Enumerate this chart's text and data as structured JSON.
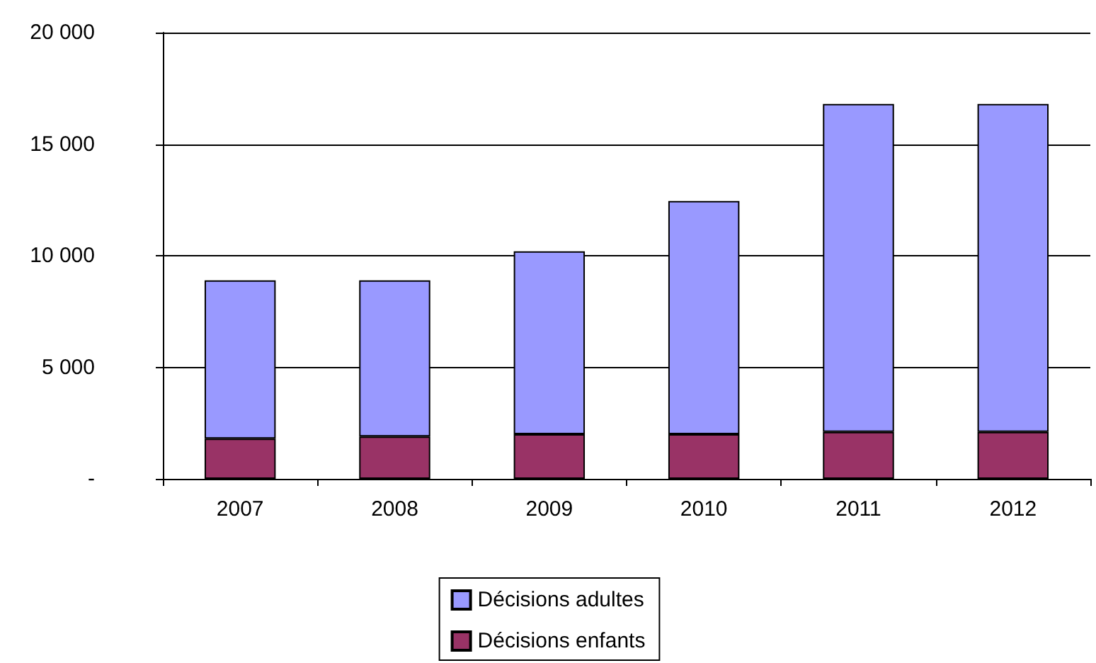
{
  "chart_data": {
    "type": "bar",
    "stacked": true,
    "categories": [
      "2007",
      "2008",
      "2009",
      "2010",
      "2011",
      "2012"
    ],
    "series": [
      {
        "name": "Décisions enfants",
        "color": "#993366",
        "values": [
          1800,
          1900,
          2000,
          2000,
          2100,
          2100
        ]
      },
      {
        "name": "Décisions adultes",
        "color": "#9999ff",
        "values": [
          7100,
          7000,
          8200,
          10450,
          14700,
          14700
        ]
      }
    ],
    "ylim": [
      0,
      20000
    ],
    "yticks": [
      {
        "value": 0,
        "label": "-"
      },
      {
        "value": 5000,
        "label": "5 000"
      },
      {
        "value": 10000,
        "label": "10 000"
      },
      {
        "value": 15000,
        "label": "15 000"
      },
      {
        "value": 20000,
        "label": "20 000"
      }
    ],
    "grid": "y",
    "legend": "bottom"
  }
}
